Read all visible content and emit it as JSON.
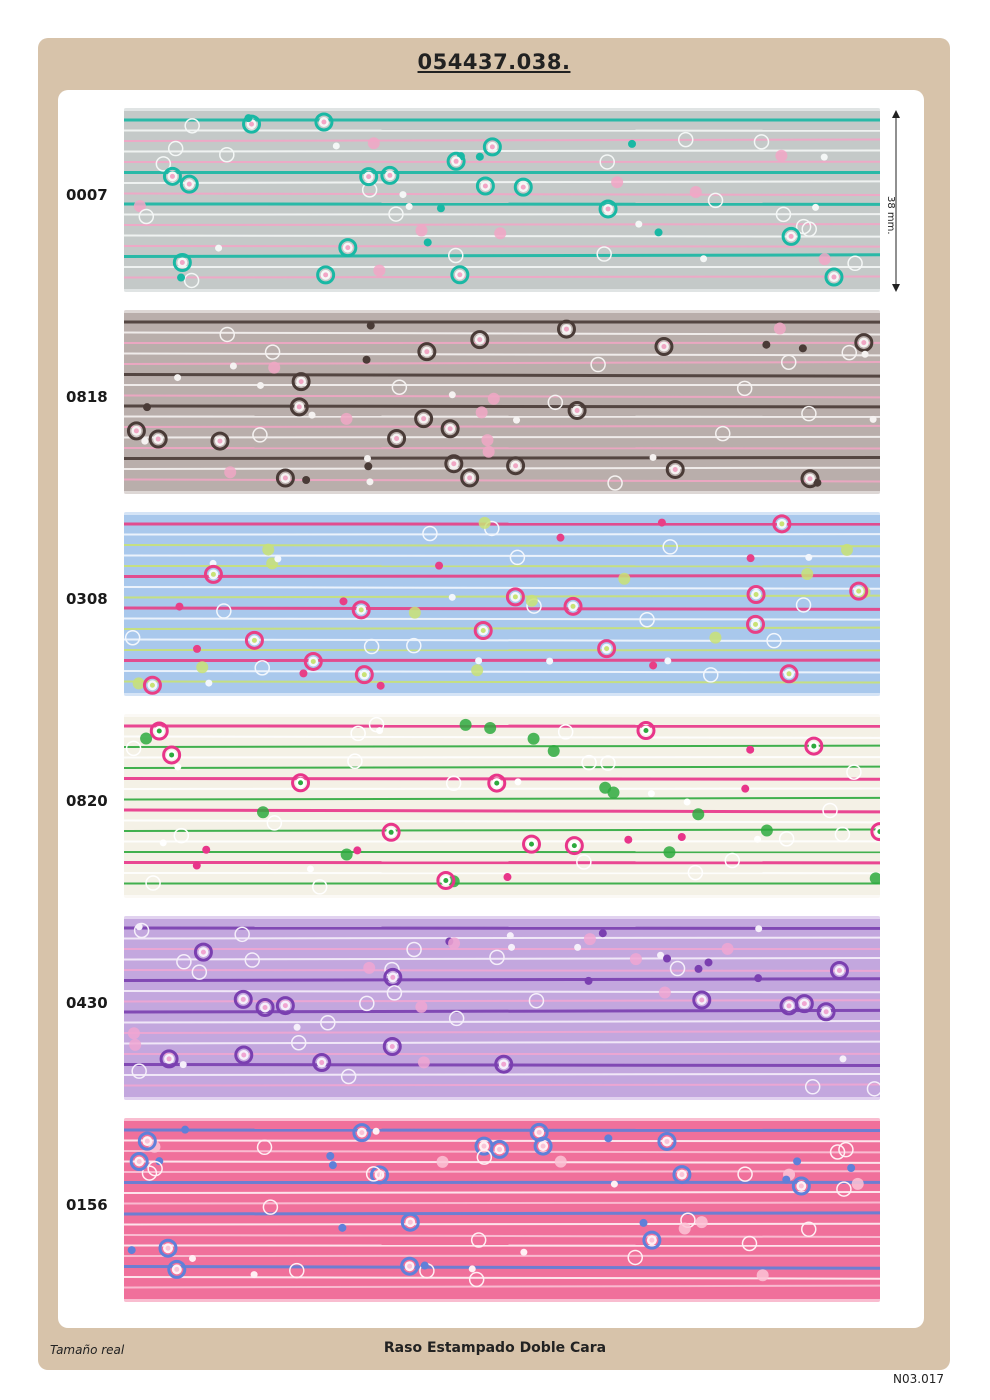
{
  "header": {
    "title": "054437.038."
  },
  "measure": {
    "label": "38 mm."
  },
  "ribbons": [
    {
      "code": "0007",
      "colors": {
        "bg": "#c4c9c8",
        "accent": "#19b8a4",
        "secondary": "#f2a6c6",
        "white": "#f4f7f6"
      }
    },
    {
      "code": "0818",
      "colors": {
        "bg": "#b9aeab",
        "accent": "#4a3b37",
        "secondary": "#f0a7c4",
        "white": "#f5f2f1"
      }
    },
    {
      "code": "0308",
      "colors": {
        "bg": "#a9c8ec",
        "accent": "#e83f86",
        "secondary": "#c9e276",
        "white": "#f3f7fd"
      }
    },
    {
      "code": "0820",
      "colors": {
        "bg": "#f4f1e6",
        "accent": "#e8358a",
        "secondary": "#2eaa3e",
        "white": "#ffffff"
      }
    },
    {
      "code": "0430",
      "colors": {
        "bg": "#c3a7de",
        "accent": "#7a3fb0",
        "secondary": "#f0a6d2",
        "white": "#f5effa"
      }
    },
    {
      "code": "0156",
      "colors": {
        "bg": "#f0709b",
        "accent": "#5f80d9",
        "secondary": "#fbc3d6",
        "white": "#fff0f4"
      }
    }
  ],
  "footer": {
    "left": "Tamaño real",
    "center": "Raso Estampado Doble Cara",
    "page_code": "N03.017"
  }
}
